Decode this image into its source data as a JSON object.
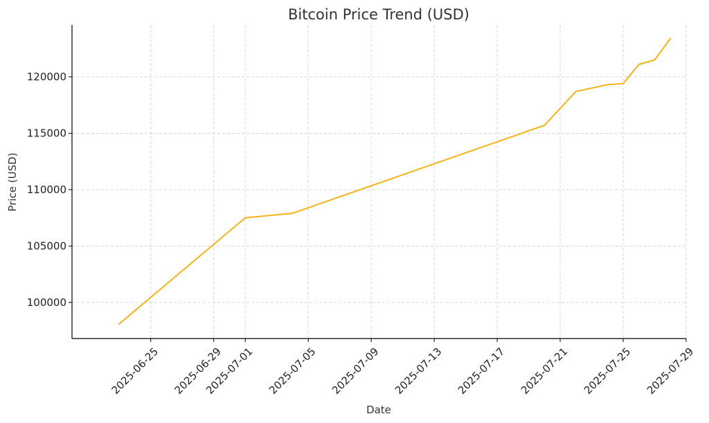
{
  "chart_data": {
    "type": "line",
    "title": "Bitcoin Price Trend (USD)",
    "xlabel": "Date",
    "ylabel": "Price (USD)",
    "x_ticks": [
      "2025-06-25",
      "2025-06-29",
      "2025-07-01",
      "2025-07-05",
      "2025-07-09",
      "2025-07-13",
      "2025-07-17",
      "2025-07-21",
      "2025-07-25",
      "2025-07-29"
    ],
    "y_ticks": [
      100000,
      105000,
      110000,
      115000,
      120000
    ],
    "xlim": [
      "2025-06-20",
      "2025-07-29"
    ],
    "ylim": [
      96800,
      124600
    ],
    "grid": true,
    "color": "#f5b21a",
    "series": [
      {
        "x": [
          "2025-06-23",
          "2025-07-01",
          "2025-07-04",
          "2025-07-20",
          "2025-07-22",
          "2025-07-24",
          "2025-07-25",
          "2025-07-26",
          "2025-07-27",
          "2025-07-28"
        ],
        "values": [
          98100,
          107500,
          107900,
          115700,
          118700,
          119300,
          119400,
          121100,
          121500,
          123400
        ]
      }
    ]
  }
}
